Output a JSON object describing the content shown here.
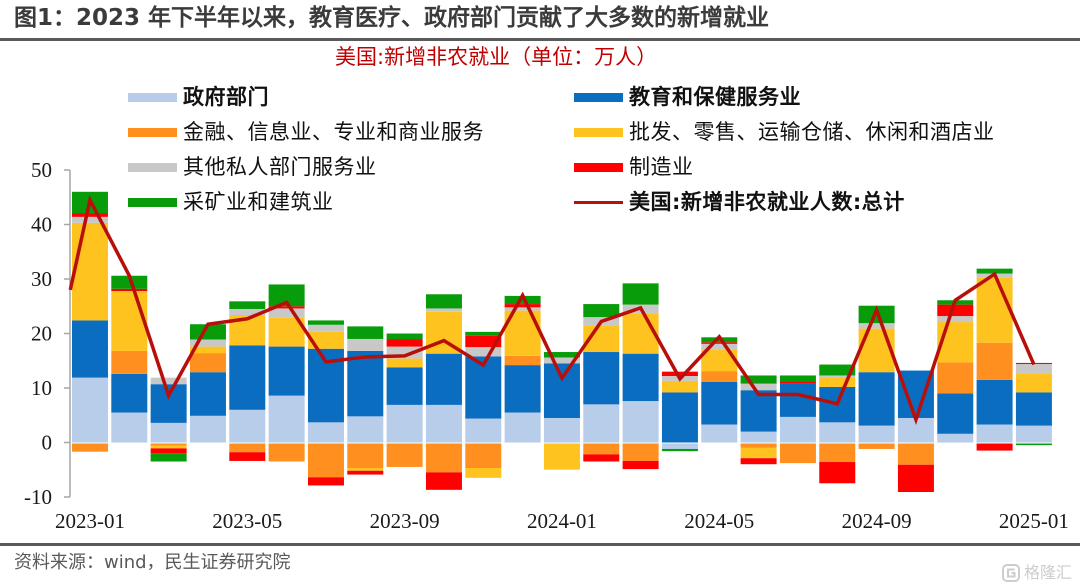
{
  "header": {
    "figure_title": "图1：2023 年下半年以来，教育医疗、政府部门贡献了大多数的新增就业"
  },
  "footer": {
    "source": "资料来源：wind，民生证券研究院",
    "watermark": "格隆汇",
    "watermark_icon": "gelonghui-logo-icon"
  },
  "chart_data": {
    "type": "bar",
    "subtype": "stacked bar + line",
    "title": "美国:新增非农就业（单位：万人）",
    "unit": "万人",
    "xlabel": "",
    "ylabel": "",
    "ylim": [
      -10,
      50
    ],
    "grid": false,
    "legend": {
      "position": "top",
      "columns": 2
    },
    "y_axis": {
      "ticks": [
        50,
        40,
        30,
        20,
        10,
        0,
        -10
      ]
    },
    "x_axis": {
      "tick_labels": [
        "2023-01",
        "2023-05",
        "2023-09",
        "2024-01",
        "2024-05",
        "2024-09",
        "2025-01"
      ]
    },
    "categories": [
      "2023-01",
      "2023-02",
      "2023-03",
      "2023-04",
      "2023-05",
      "2023-06",
      "2023-07",
      "2023-08",
      "2023-09",
      "2023-10",
      "2023-11",
      "2023-12",
      "2024-01",
      "2024-02",
      "2024-03",
      "2024-04",
      "2024-05",
      "2024-06",
      "2024-07",
      "2024-08",
      "2024-09",
      "2024-10",
      "2024-11",
      "2024-12",
      "2025-01"
    ],
    "series": [
      {
        "name": "政府部门",
        "type": "bar",
        "color": "#B7CDEA",
        "values": [
          11.9,
          5.5,
          3.6,
          4.9,
          6.0,
          8.6,
          3.7,
          4.8,
          6.9,
          6.9,
          4.4,
          5.5,
          4.5,
          7.0,
          7.6,
          -1.0,
          3.3,
          2.0,
          4.7,
          3.7,
          3.1,
          4.5,
          1.6,
          3.3,
          3.1
        ]
      },
      {
        "name": "教育和保健服务业",
        "type": "bar",
        "color": "#0B6DC0",
        "values": [
          10.5,
          7.1,
          7.1,
          8.0,
          11.8,
          9.0,
          13.5,
          12.0,
          6.9,
          9.4,
          11.4,
          8.7,
          10.0,
          9.6,
          8.7,
          9.2,
          7.8,
          7.6,
          6.1,
          6.5,
          9.8,
          8.7,
          7.4,
          8.2,
          6.1
        ]
      },
      {
        "name": "金融、信息业、专业和商业服务",
        "type": "bar",
        "color": "#FF8F1F",
        "values": [
          -1.5,
          4.2,
          -0.4,
          3.5,
          -1.6,
          -3.3,
          -6.2,
          -4.5,
          -4.3,
          -5.3,
          -4.5,
          1.7,
          0,
          -2.0,
          -3.2,
          0,
          2.0,
          -0.8,
          -3.6,
          -3.4,
          -1.0,
          -3.9,
          5.7,
          6.8,
          0
        ]
      },
      {
        "name": "批发、零售、运输仓储、休闲和酒店业",
        "type": "bar",
        "color": "#FFC31F",
        "values": [
          17.9,
          11.0,
          -0.5,
          1.2,
          5.6,
          5.3,
          3.1,
          -0.5,
          1.6,
          7.7,
          -1.8,
          8.3,
          -4.8,
          4.9,
          7.4,
          2.1,
          4.0,
          -1.9,
          0,
          1.8,
          8.0,
          0,
          7.4,
          12.0,
          3.5
        ]
      },
      {
        "name": "其他私人部门服务业",
        "type": "bar",
        "color": "#C8C8C8",
        "values": [
          1.1,
          0,
          1.2,
          1.3,
          1.1,
          1.7,
          1.3,
          2.2,
          2.2,
          0.6,
          1.7,
          0.6,
          1.1,
          1.5,
          1.6,
          0.9,
          1.0,
          1.2,
          0,
          0.3,
          1.0,
          0,
          1.1,
          0.7,
          1.7
        ]
      },
      {
        "name": "制造业",
        "type": "bar",
        "color": "#FF0000",
        "values": [
          0.7,
          0.4,
          -0.9,
          0,
          -1.6,
          0.4,
          -1.5,
          -0.7,
          1.3,
          -3.2,
          2.1,
          0.6,
          0,
          -1.3,
          -1.5,
          0.8,
          0.3,
          -1.1,
          0.3,
          -3.9,
          0,
          -5.0,
          2.1,
          -1.3,
          0.2
        ]
      },
      {
        "name": "采矿业和建筑业",
        "type": "bar",
        "color": "#089C0B",
        "values": [
          3.9,
          2.4,
          -1.5,
          2.8,
          1.4,
          4.0,
          0.8,
          2.3,
          1.1,
          2.6,
          0.7,
          1.5,
          1.0,
          2.4,
          3.9,
          -0.4,
          0.9,
          1.5,
          1.2,
          2.0,
          3.2,
          0,
          0.8,
          0.9,
          -0.3
        ]
      },
      {
        "name": "美国:新增非农就业人数:总计",
        "type": "line",
        "color": "#B80F0A",
        "clipped_lead_in_value": 28.0,
        "values": [
          44.5,
          30.6,
          8.6,
          21.7,
          22.7,
          25.7,
          14.8,
          15.7,
          15.9,
          18.7,
          14.2,
          27.0,
          11.8,
          22.2,
          24.7,
          11.7,
          19.4,
          8.8,
          8.8,
          7.1,
          24.3,
          4.2,
          26.1,
          30.9,
          14.3
        ]
      }
    ]
  }
}
